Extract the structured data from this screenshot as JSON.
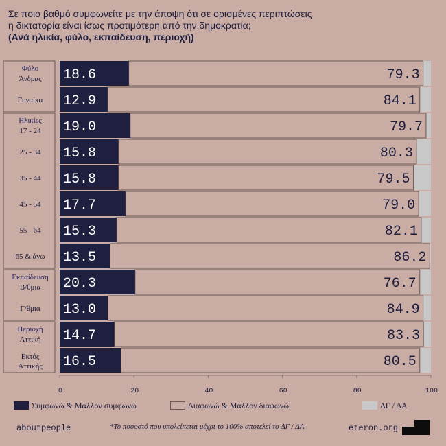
{
  "title": {
    "line1": "Σε ποιο βαθμό συμφωνείτε με την άποψη ότι σε ορισμένες περιπτώσεις",
    "line2": "η δικτατορία είναι ίσως προτιμότερη από την δημοκρατία;",
    "line3": "(Ανά ηλικία, φύλο, εκπαίδευση, περιοχή)"
  },
  "colors": {
    "background": "#c9aca3",
    "agree": "#1f1f3f",
    "disagree_fill": "#c9aca3",
    "disagree_border": "#6b5854",
    "dk": "#c8c8c8",
    "text": "#1d1d3d",
    "group_label": "#2a2a6a"
  },
  "chart_data": {
    "type": "bar",
    "orientation": "horizontal",
    "stacked": true,
    "xlim": [
      0,
      100
    ],
    "x_ticks": [
      "0",
      "20",
      "40",
      "60",
      "80",
      "100"
    ],
    "groups": [
      {
        "name": "Φύλο",
        "rows": [
          {
            "label": "Άνδρας",
            "agree": 18.6,
            "disagree": 79.3,
            "agree_label": "18.6",
            "disagree_label": "79.3"
          },
          {
            "label": "Γυναίκα",
            "agree": 12.9,
            "disagree": 84.1,
            "agree_label": "12.9",
            "disagree_label": "84.1"
          }
        ]
      },
      {
        "name": "Ηλικίες",
        "rows": [
          {
            "label": "17 - 24",
            "agree": 19.0,
            "disagree": 79.7,
            "agree_label": "19.0",
            "disagree_label": "79.7"
          },
          {
            "label": "25 - 34",
            "agree": 15.8,
            "disagree": 80.3,
            "agree_label": "15.8",
            "disagree_label": "80.3"
          },
          {
            "label": "35 - 44",
            "agree": 15.8,
            "disagree": 79.5,
            "agree_label": "15.8",
            "disagree_label": "79.5"
          },
          {
            "label": "45 - 54",
            "agree": 17.7,
            "disagree": 79.0,
            "agree_label": "17.7",
            "disagree_label": "79.0"
          },
          {
            "label": "55 - 64",
            "agree": 15.3,
            "disagree": 82.1,
            "agree_label": "15.3",
            "disagree_label": "82.1"
          },
          {
            "label": "65 & άνω",
            "agree": 13.5,
            "disagree": 86.2,
            "agree_label": "13.5",
            "disagree_label": "86.2"
          }
        ]
      },
      {
        "name": "Εκπαίδευση",
        "rows": [
          {
            "label": "Β/θμια",
            "agree": 20.3,
            "disagree": 76.7,
            "agree_label": "20.3",
            "disagree_label": "76.7"
          },
          {
            "label": "Γ/θμια",
            "agree": 13.0,
            "disagree": 84.9,
            "agree_label": "13.0",
            "disagree_label": "84.9"
          }
        ]
      },
      {
        "name": "Περιοχή",
        "rows": [
          {
            "label": "Αττική",
            "agree": 14.7,
            "disagree": 83.3,
            "agree_label": "14.7",
            "disagree_label": "83.3"
          },
          {
            "label": "Εκτός Αττικής",
            "agree": 16.5,
            "disagree": 80.5,
            "agree_label": "16.5",
            "disagree_label": "80.5"
          }
        ]
      }
    ],
    "legend": [
      {
        "key": "agree",
        "label": "Συμφωνώ & Μάλλον συμφωνώ"
      },
      {
        "key": "disagree",
        "label": "Διαφωνώ & Μάλλον διαφωνώ"
      },
      {
        "key": "dk",
        "label": "ΔΓ / ΔΑ"
      }
    ]
  },
  "footer": {
    "left": "aboutpeople",
    "note": "*Το ποσοστό που υπολείπεται μέχρι το 100% αποτελεί το ΔΓ / ΔΑ",
    "right": "eteron.org"
  }
}
